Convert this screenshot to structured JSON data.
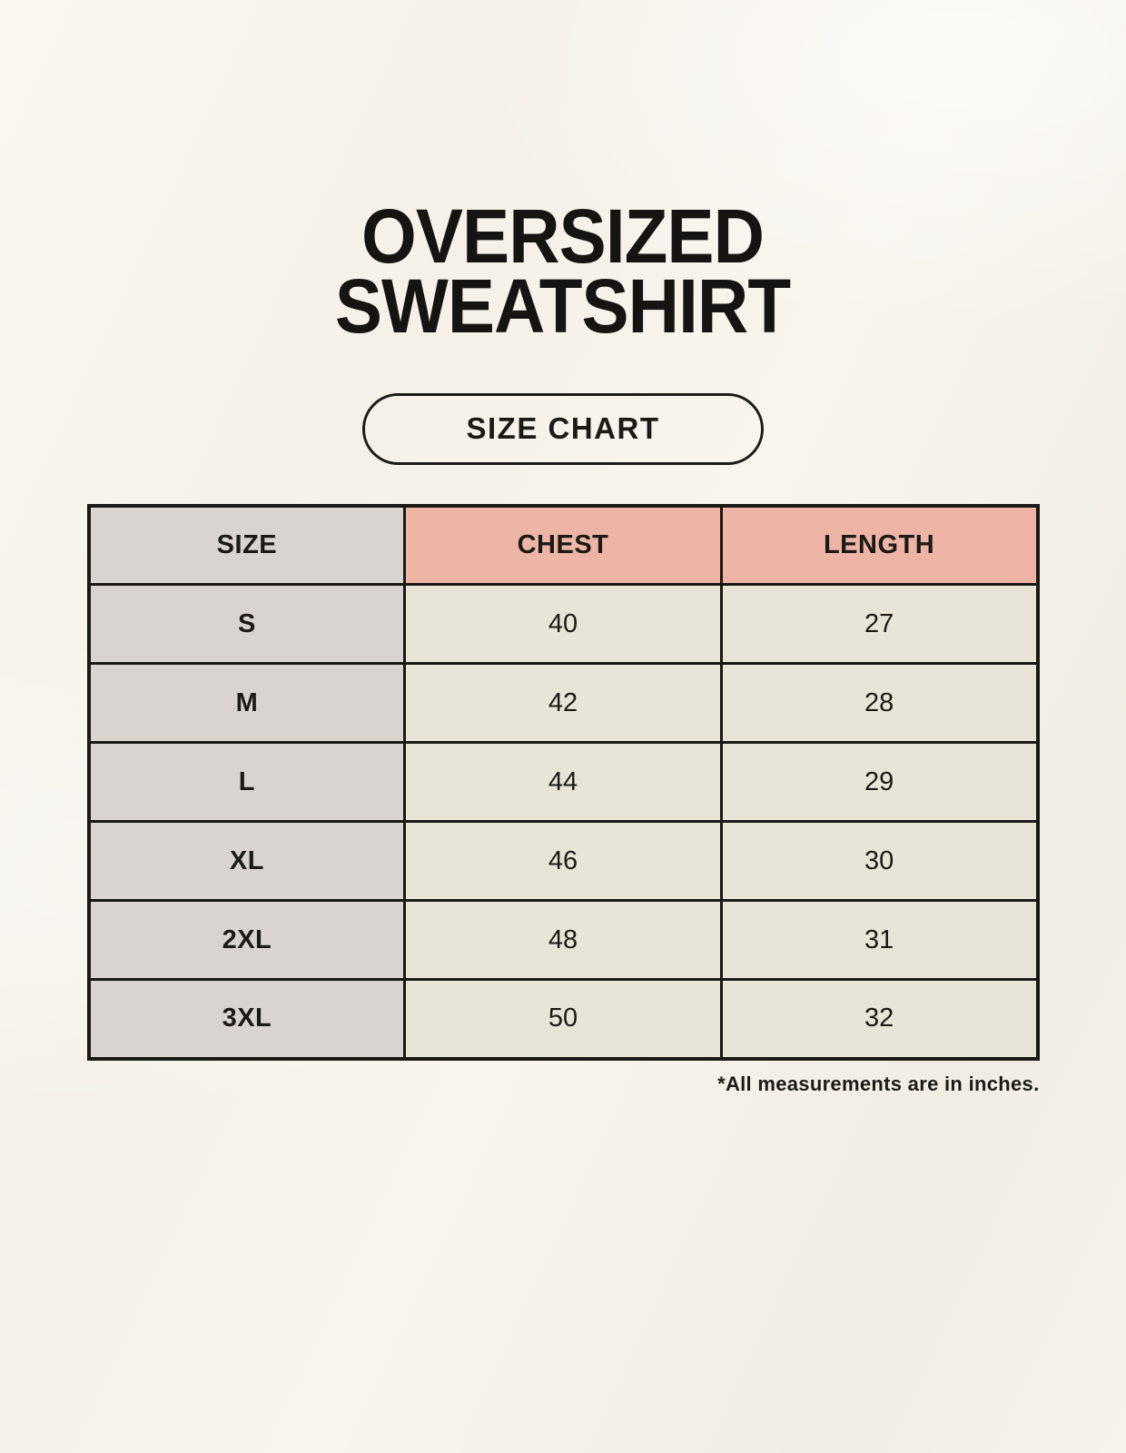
{
  "page": {
    "title_line1": "OVERSIZED",
    "title_line2": "SWEATSHIRT",
    "badge_label": "SIZE CHART",
    "footnote": "*All measurements are in inches."
  },
  "table": {
    "columns": [
      "SIZE",
      "CHEST",
      "LENGTH"
    ],
    "rows": [
      {
        "size": "S",
        "chest": "40",
        "length": "27"
      },
      {
        "size": "M",
        "chest": "42",
        "length": "28"
      },
      {
        "size": "L",
        "chest": "44",
        "length": "29"
      },
      {
        "size": "XL",
        "chest": "46",
        "length": "30"
      },
      {
        "size": "2XL",
        "chest": "48",
        "length": "31"
      },
      {
        "size": "3XL",
        "chest": "50",
        "length": "32"
      }
    ]
  },
  "colors": {
    "background": "#f6f3ec",
    "header_size_bg": "#dad4d0",
    "header_measure_bg": "#eeb4a6",
    "row_label_bg": "#dad4d0",
    "value_cell_bg": "#e9e4d8",
    "border": "#1b1916",
    "text": "#1c1a17"
  }
}
